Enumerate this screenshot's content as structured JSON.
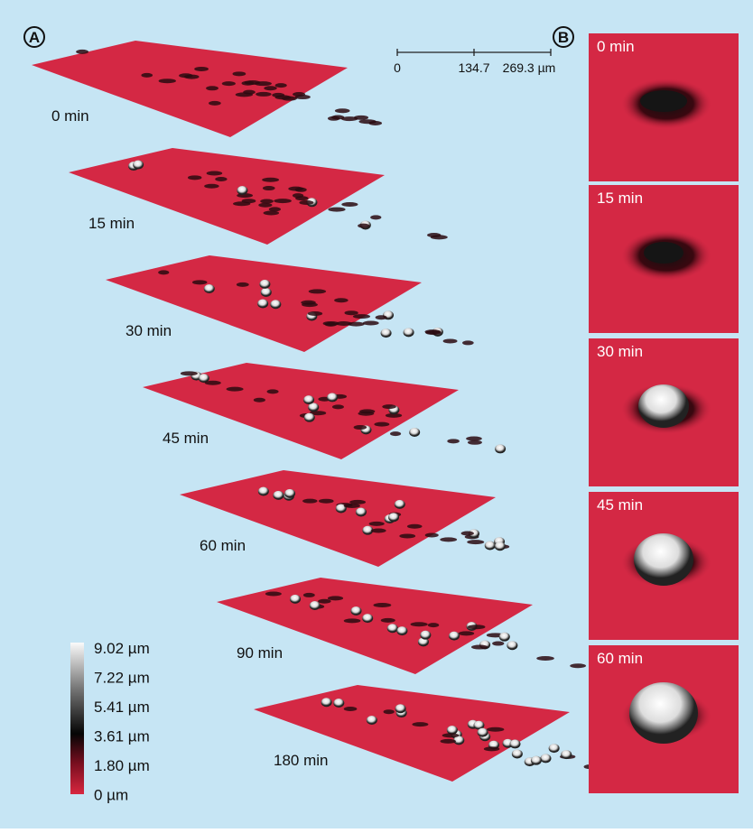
{
  "panel_a": {
    "label": "A",
    "layers": [
      "0 min",
      "15 min",
      "30 min",
      "45 min",
      "60 min",
      "90 min",
      "180 min"
    ],
    "scale_bar": [
      "0",
      "134.7",
      "269.3 µm"
    ],
    "colorbar": [
      "9.02 µm",
      "7.22 µm",
      "5.41 µm",
      "3.61 µm",
      "1.80 µm",
      "0 µm"
    ]
  },
  "panel_b": {
    "label": "B",
    "frames": [
      "0 min",
      "15 min",
      "30 min",
      "45 min",
      "60 min"
    ]
  }
}
